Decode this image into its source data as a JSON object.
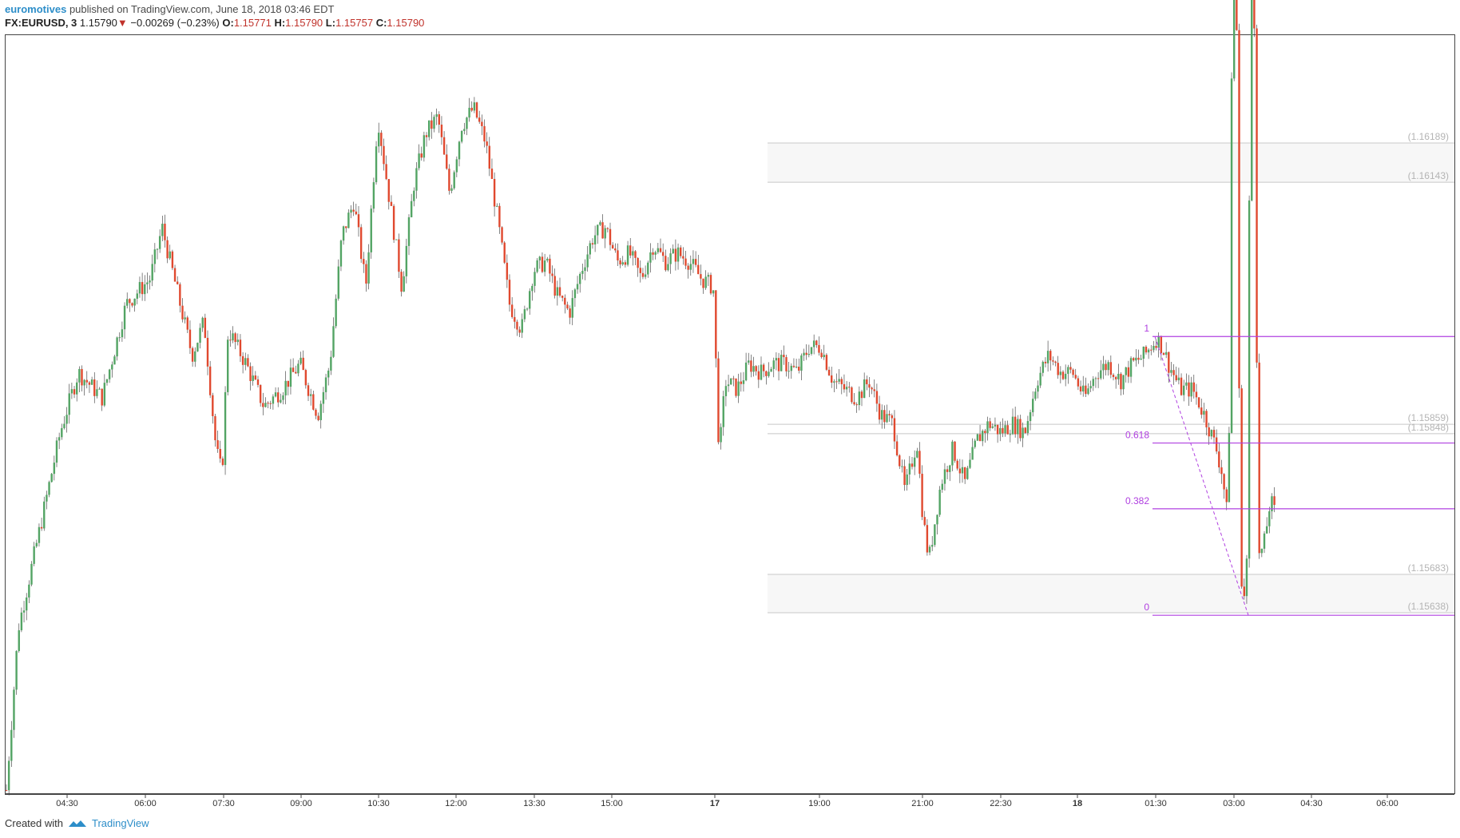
{
  "header": {
    "author": "euromotives",
    "published": "published on TradingView.com, June 18, 2018 03:46 EDT",
    "symbol": "FX:EURUSD, 3",
    "last": "1.15790",
    "down_arrow": "▼",
    "change": "−0.00269 (−0.23%)",
    "o_label": "O:",
    "o": "1.15771",
    "h_label": "H:",
    "h": "1.15790",
    "l_label": "L:",
    "l": "1.15757",
    "c_label": "C:",
    "c": "1.15790"
  },
  "footer": {
    "created_with": "Created with",
    "brand": "TradingView",
    "logo_icon": "tradingview-logo-icon"
  },
  "colors": {
    "up": "#53a464",
    "down": "#e0492f",
    "fib": "#b040e0",
    "zone": "#c8c8c8",
    "price_label": "#b4b4b4",
    "grid": "#e6e6e6"
  },
  "chart_data": {
    "type": "candlestick",
    "symbol": "FX:EURUSD",
    "timeframe": "3",
    "x_ticks": [
      "04:30",
      "06:00",
      "07:30",
      "09:00",
      "10:30",
      "12:00",
      "13:30",
      "15:00",
      "17",
      "19:00",
      "21:00",
      "22:30",
      "18",
      "01:30",
      "03:00",
      "04:30",
      "06:00"
    ],
    "price_levels": [
      {
        "label": "(1.16189)",
        "value": 1.16189
      },
      {
        "label": "(1.16143)",
        "value": 1.16143
      },
      {
        "label": "(1.15859)",
        "value": 1.15859
      },
      {
        "label": "(1.15848)",
        "value": 1.15848
      },
      {
        "label": "(1.15683)",
        "value": 1.15683
      },
      {
        "label": "(1.15638)",
        "value": 1.15638
      }
    ],
    "fibonacci": [
      {
        "label": "1",
        "ratio": 1
      },
      {
        "label": "0.618",
        "ratio": 0.618
      },
      {
        "label": "0.382",
        "ratio": 0.382
      },
      {
        "label": "0",
        "ratio": 0
      }
    ],
    "fib_anchors": {
      "high": 1.15962,
      "low": 1.15635
    },
    "price_path": [
      [
        0,
        1.1543
      ],
      [
        2,
        1.1562
      ],
      [
        6,
        1.1575
      ],
      [
        9,
        1.1585
      ],
      [
        12,
        1.1592
      ],
      [
        16,
        1.1589
      ],
      [
        20,
        1.16
      ],
      [
        24,
        1.1603
      ],
      [
        26,
        1.1609
      ],
      [
        28,
        1.1603
      ],
      [
        31,
        1.1594
      ],
      [
        33,
        1.1598
      ],
      [
        35,
        1.1583
      ],
      [
        36,
        1.158
      ],
      [
        37,
        1.1597
      ],
      [
        40,
        1.1593
      ],
      [
        43,
        1.1588
      ],
      [
        46,
        1.159
      ],
      [
        49,
        1.1593
      ],
      [
        52,
        1.1587
      ],
      [
        54,
        1.1593
      ],
      [
        56,
        1.1608
      ],
      [
        58,
        1.1612
      ],
      [
        60,
        1.1602
      ],
      [
        62,
        1.1622
      ],
      [
        64,
        1.1612
      ],
      [
        66,
        1.1602
      ],
      [
        68,
        1.1614
      ],
      [
        70,
        1.162
      ],
      [
        72,
        1.1622
      ],
      [
        74,
        1.1613
      ],
      [
        76,
        1.1621
      ],
      [
        78,
        1.1623
      ],
      [
        80,
        1.1619
      ],
      [
        82,
        1.161
      ],
      [
        84,
        1.16
      ],
      [
        86,
        1.1597
      ],
      [
        88,
        1.1604
      ],
      [
        90,
        1.1605
      ],
      [
        92,
        1.1601
      ],
      [
        94,
        1.1599
      ],
      [
        96,
        1.1604
      ],
      [
        98,
        1.1608
      ],
      [
        100,
        1.1609
      ],
      [
        102,
        1.1605
      ],
      [
        104,
        1.1606
      ],
      [
        106,
        1.1603
      ],
      [
        108,
        1.1607
      ],
      [
        110,
        1.1605
      ],
      [
        112,
        1.1606
      ],
      [
        114,
        1.1605
      ],
      [
        116,
        1.1603
      ],
      [
        118,
        1.1602
      ],
      [
        119,
        1.1582
      ],
      [
        120,
        1.1591
      ],
      [
        122,
        1.159
      ],
      [
        124,
        1.1593
      ],
      [
        126,
        1.1592
      ],
      [
        128,
        1.1593
      ],
      [
        130,
        1.1593
      ],
      [
        132,
        1.1592
      ],
      [
        134,
        1.1595
      ],
      [
        136,
        1.1595
      ],
      [
        138,
        1.1591
      ],
      [
        140,
        1.159
      ],
      [
        142,
        1.1589
      ],
      [
        144,
        1.1591
      ],
      [
        146,
        1.1587
      ],
      [
        148,
        1.1586
      ],
      [
        150,
        1.1578
      ],
      [
        152,
        1.1584
      ],
      [
        153,
        1.1575
      ],
      [
        154,
        1.157
      ],
      [
        156,
        1.1579
      ],
      [
        158,
        1.1583
      ],
      [
        160,
        1.1579
      ],
      [
        162,
        1.1584
      ],
      [
        164,
        1.1586
      ],
      [
        166,
        1.1585
      ],
      [
        168,
        1.1586
      ],
      [
        170,
        1.1585
      ],
      [
        172,
        1.1591
      ],
      [
        174,
        1.1594
      ],
      [
        176,
        1.1592
      ],
      [
        178,
        1.1592
      ],
      [
        180,
        1.1589
      ],
      [
        182,
        1.1592
      ],
      [
        184,
        1.1593
      ],
      [
        186,
        1.1591
      ],
      [
        188,
        1.1593
      ],
      [
        190,
        1.1594
      ],
      [
        192,
        1.1596
      ],
      [
        193,
        1.1595
      ],
      [
        194,
        1.1593
      ],
      [
        196,
        1.159
      ],
      [
        198,
        1.159
      ],
      [
        200,
        1.1587
      ],
      [
        202,
        1.1583
      ],
      [
        203,
        1.158
      ],
      [
        204,
        1.1574
      ],
      [
        205,
        1.1671
      ],
      [
        206,
        1.1569
      ],
      [
        207,
        1.1564
      ],
      [
        208,
        1.1663
      ],
      [
        209,
        1.157
      ],
      [
        210,
        1.1572
      ],
      [
        211,
        1.1577
      ],
      [
        212,
        1.1575
      ]
    ]
  }
}
